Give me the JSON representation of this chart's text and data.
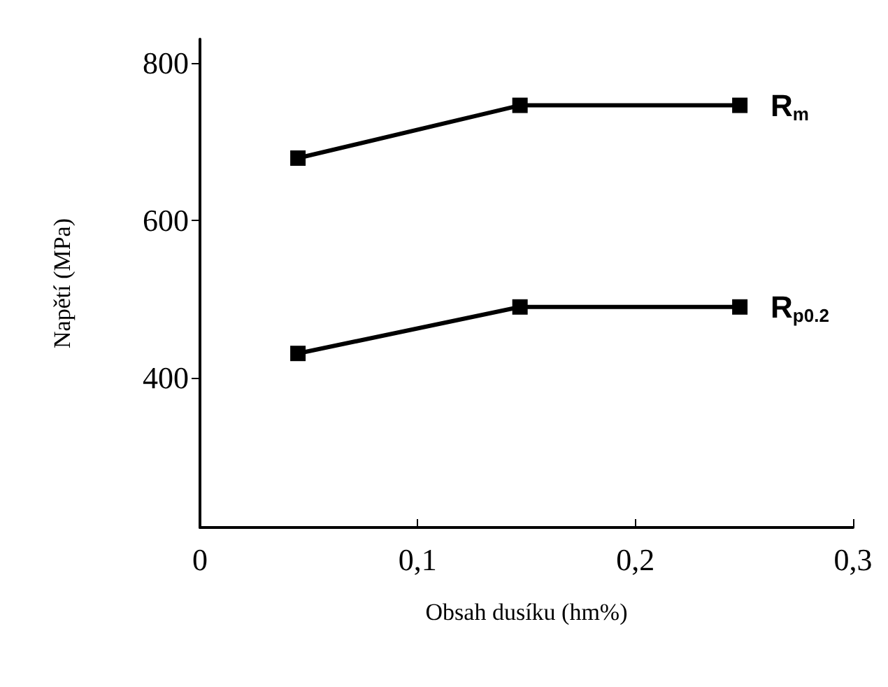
{
  "chart_data": {
    "type": "line",
    "xlabel": "Obsah dusíku (hm%)",
    "ylabel": "Napětí (MPa)",
    "x": [
      0.045,
      0.147,
      0.248
    ],
    "series": [
      {
        "name": "R$_{m}$",
        "color": "#000000",
        "values": [
          679,
          746,
          746
        ]
      },
      {
        "name": "R$_{p0.2}$",
        "color": "#000000",
        "values": [
          431,
          490,
          490
        ]
      }
    ],
    "xlim": [
      0,
      0.3
    ],
    "xticks": [
      {
        "value": 0,
        "label": "0"
      },
      {
        "value": 0.1,
        "label": "0,1"
      },
      {
        "value": 0.2,
        "label": "0,2"
      },
      {
        "value": 0.3,
        "label": "0,3"
      }
    ],
    "ylim": [
      210,
      830
    ],
    "yticks": [
      400,
      600,
      800
    ],
    "grid": false,
    "legend": false,
    "marker": "square",
    "line_style": "solid"
  }
}
